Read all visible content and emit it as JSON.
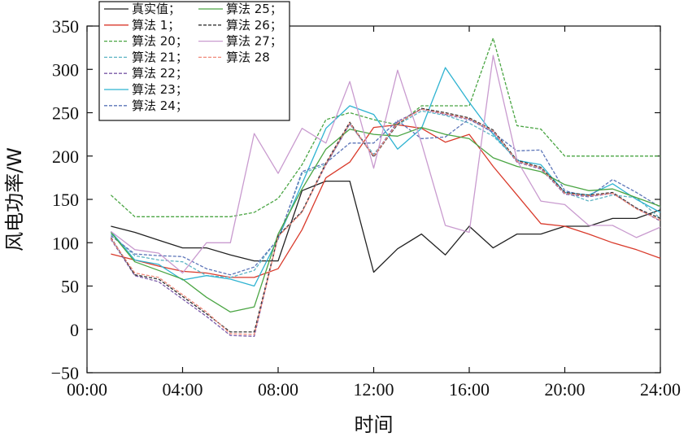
{
  "chart_data": {
    "type": "line",
    "xlabel": "时间",
    "ylabel": "风电功率/W",
    "xlim": [
      0,
      24
    ],
    "ylim": [
      -50,
      350
    ],
    "x_ticks": [
      0,
      4,
      8,
      12,
      16,
      20,
      24
    ],
    "x_tick_labels": [
      "00:00",
      "04:00",
      "08:00",
      "12:00",
      "16:00",
      "20:00",
      "24:00"
    ],
    "y_ticks": [
      -50,
      0,
      50,
      100,
      150,
      200,
      250,
      300,
      350
    ],
    "y_tick_labels": [
      "−50",
      "0",
      "50",
      "100",
      "150",
      "200",
      "250",
      "300",
      "350"
    ],
    "grid": false,
    "legend_position": "top-left",
    "series": [
      {
        "name": "真实值；",
        "color": "#222222",
        "dash": "solid",
        "x": [
          1,
          2,
          3,
          4,
          5,
          6,
          7,
          8,
          9,
          10,
          11,
          12,
          13,
          14,
          15,
          16,
          17,
          18,
          19,
          20,
          21,
          22,
          23,
          24
        ],
        "values": [
          119,
          112,
          103,
          94,
          94,
          86,
          79,
          79,
          160,
          171,
          171,
          66,
          93,
          110,
          86,
          119,
          94,
          110,
          110,
          119,
          119,
          128,
          128,
          138
        ]
      },
      {
        "name": "算法 1；",
        "color": "#d93a2b",
        "dash": "solid",
        "x": [
          1,
          2,
          3,
          4,
          5,
          6,
          7,
          8,
          9,
          10,
          11,
          12,
          13,
          14,
          15,
          16,
          17,
          18,
          19,
          20,
          21,
          22,
          23,
          24
        ],
        "values": [
          87,
          80,
          73,
          67,
          65,
          60,
          60,
          70,
          115,
          175,
          193,
          233,
          236,
          232,
          216,
          225,
          188,
          155,
          122,
          119,
          110,
          100,
          92,
          82
        ]
      },
      {
        "name": "算法 20；",
        "color": "#4aa543",
        "dash": "dashed",
        "x": [
          1,
          2,
          3,
          4,
          5,
          6,
          7,
          8,
          9,
          10,
          11,
          12,
          13,
          14,
          15,
          16,
          17,
          18,
          19,
          20,
          21,
          22,
          23,
          24
        ],
        "values": [
          155,
          130,
          130,
          130,
          130,
          130,
          135,
          151,
          190,
          242,
          250,
          242,
          236,
          258,
          258,
          258,
          336,
          235,
          231,
          200,
          200,
          200,
          200,
          200
        ]
      },
      {
        "name": "算法 21；",
        "color": "#5db3c4",
        "dash": "dashed",
        "x": [
          1,
          2,
          3,
          4,
          5,
          6,
          7,
          8,
          9,
          10,
          11,
          12,
          13,
          14,
          15,
          16,
          17,
          18,
          19,
          20,
          21,
          22,
          23,
          24
        ],
        "values": [
          110,
          85,
          80,
          78,
          62,
          60,
          68,
          105,
          180,
          190,
          237,
          202,
          236,
          252,
          247,
          238,
          223,
          196,
          186,
          158,
          148,
          155,
          152,
          128
        ]
      },
      {
        "name": "算法 22；",
        "color": "#7a5aa8",
        "dash": "dashed",
        "x": [
          1,
          2,
          3,
          4,
          5,
          6,
          7,
          8,
          9,
          10,
          11,
          12,
          13,
          14,
          15,
          16,
          17,
          18,
          19,
          20,
          21,
          22,
          23,
          24
        ],
        "values": [
          104,
          62,
          55,
          35,
          15,
          -7,
          -8,
          108,
          136,
          190,
          237,
          200,
          240,
          254,
          248,
          242,
          228,
          193,
          185,
          156,
          153,
          157,
          140,
          125
        ]
      },
      {
        "name": "算法 23；",
        "color": "#2fb3d1",
        "dash": "solid",
        "x": [
          1,
          2,
          3,
          4,
          5,
          6,
          7,
          8,
          9,
          10,
          11,
          12,
          13,
          14,
          15,
          16,
          17,
          18,
          19,
          20,
          21,
          22,
          23,
          24
        ],
        "values": [
          113,
          80,
          75,
          57,
          62,
          58,
          50,
          105,
          168,
          232,
          258,
          248,
          208,
          232,
          302,
          262,
          225,
          195,
          190,
          158,
          155,
          168,
          150,
          135
        ]
      },
      {
        "name": "算法 24；",
        "color": "#5b74b8",
        "dash": "dashed",
        "x": [
          1,
          2,
          3,
          4,
          5,
          6,
          7,
          8,
          9,
          10,
          11,
          12,
          13,
          14,
          15,
          16,
          17,
          18,
          19,
          20,
          21,
          22,
          23,
          24
        ],
        "values": [
          108,
          87,
          85,
          84,
          70,
          63,
          72,
          104,
          182,
          192,
          215,
          215,
          241,
          220,
          222,
          243,
          227,
          206,
          207,
          160,
          153,
          173,
          158,
          141
        ]
      },
      {
        "name": "算法 25；",
        "color": "#4aa543",
        "dash": "solid",
        "x": [
          1,
          2,
          3,
          4,
          5,
          6,
          7,
          8,
          9,
          10,
          11,
          12,
          13,
          14,
          15,
          16,
          17,
          18,
          19,
          20,
          21,
          22,
          23,
          24
        ],
        "values": [
          112,
          78,
          68,
          58,
          37,
          20,
          26,
          110,
          162,
          208,
          231,
          225,
          223,
          233,
          225,
          220,
          198,
          188,
          182,
          167,
          160,
          162,
          152,
          142
        ]
      },
      {
        "name": "算法 26；",
        "color": "#333333",
        "dash": "dashed",
        "x": [
          1,
          2,
          3,
          4,
          5,
          6,
          7,
          8,
          9,
          10,
          11,
          12,
          13,
          14,
          15,
          16,
          17,
          18,
          19,
          20,
          21,
          22,
          23,
          24
        ],
        "values": [
          106,
          63,
          58,
          38,
          18,
          -3,
          -3,
          108,
          136,
          192,
          239,
          199,
          237,
          255,
          250,
          244,
          230,
          195,
          187,
          158,
          155,
          158,
          140,
          128
        ]
      },
      {
        "name": "算法 27；",
        "color": "#c99bcf",
        "dash": "solid",
        "x": [
          1,
          2,
          3,
          4,
          5,
          6,
          7,
          8,
          9,
          10,
          11,
          12,
          13,
          14,
          15,
          16,
          17,
          18,
          19,
          20,
          21,
          22,
          23,
          24
        ],
        "values": [
          113,
          92,
          88,
          65,
          100,
          100,
          226,
          180,
          232,
          215,
          286,
          186,
          299,
          215,
          120,
          112,
          316,
          195,
          148,
          144,
          120,
          120,
          106,
          118
        ]
      },
      {
        "name": "算法 28",
        "color": "#f08a7a",
        "dash": "dashed",
        "x": [
          1,
          2,
          3,
          4,
          5,
          6,
          7,
          8,
          9,
          10,
          11,
          12,
          13,
          14,
          15,
          16,
          17,
          18,
          19,
          20,
          21,
          22,
          23,
          24
        ],
        "values": [
          105,
          65,
          60,
          40,
          20,
          -5,
          -6,
          107,
          135,
          191,
          238,
          200,
          238,
          254,
          249,
          243,
          229,
          194,
          186,
          157,
          154,
          157,
          139,
          126
        ]
      }
    ]
  }
}
